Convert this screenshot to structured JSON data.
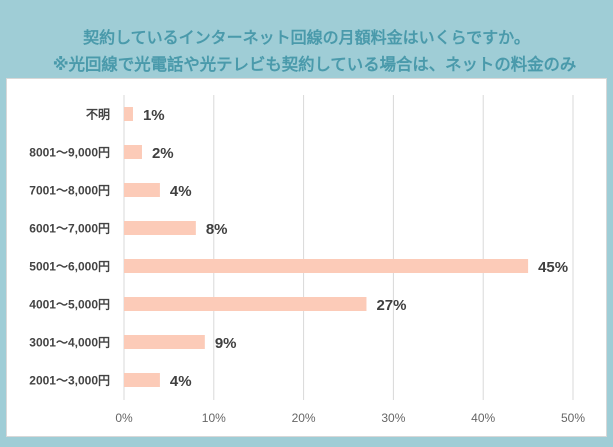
{
  "chart_data": {
    "type": "bar",
    "orientation": "horizontal",
    "title": "契約しているインターネット回線の月額料金はいくらですか。",
    "subtitle": "※光回線で光電話や光テレビも契約している場合は、ネットの料金のみ",
    "categories": [
      "不明",
      "8001～9,000円",
      "7001～8,000円",
      "6001～7,000円",
      "5001～6,000円",
      "4001～5,000円",
      "3001～4,000円",
      "2001～3,000円"
    ],
    "values": [
      1,
      2,
      4,
      8,
      45,
      27,
      9,
      4
    ],
    "data_labels": [
      "1%",
      "2%",
      "4%",
      "8%",
      "45%",
      "27%",
      "9%",
      "4%"
    ],
    "xticks": [
      "0%",
      "10%",
      "20%",
      "30%",
      "40%",
      "50%"
    ],
    "xlim": [
      0,
      50
    ],
    "grid": true,
    "xlabel": "",
    "ylabel": "",
    "colors": {
      "bar": "#fccbb8",
      "title": "#4a9aab",
      "background": "#9fcdd6"
    }
  }
}
